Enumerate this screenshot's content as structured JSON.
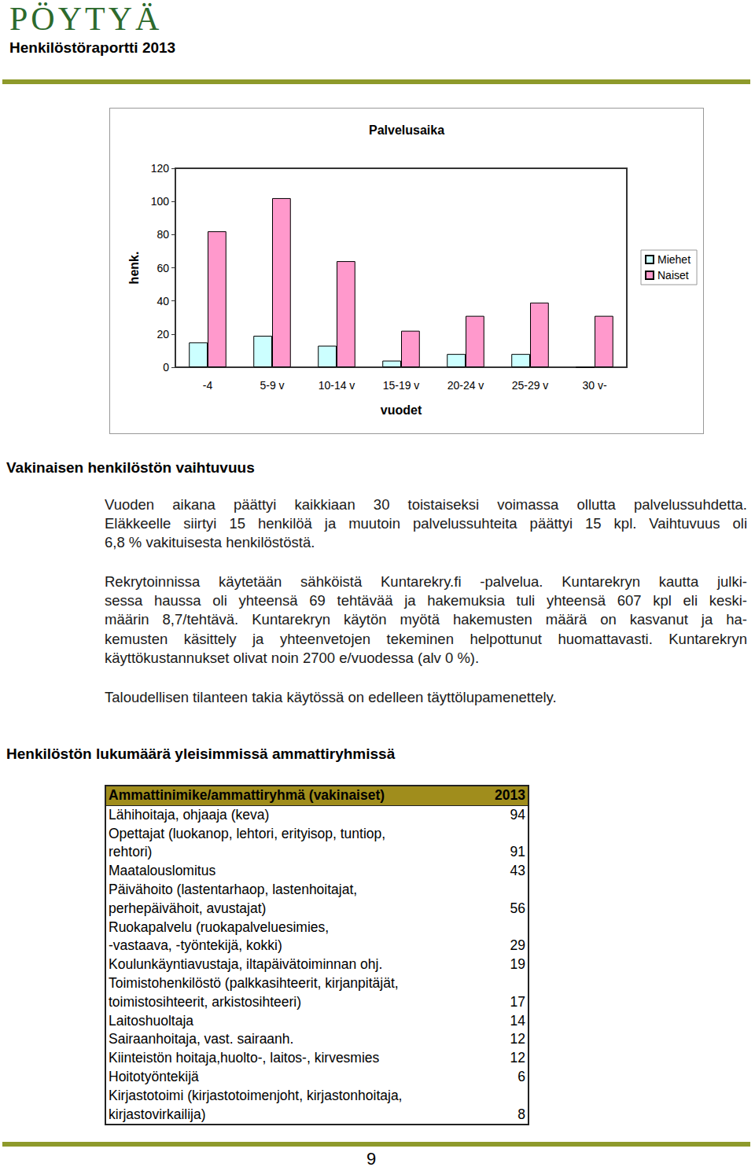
{
  "header": {
    "logo": "PÖYTYÄ",
    "subtitle": "Henkilöstöraportti 2013"
  },
  "chart_data": {
    "type": "bar",
    "title": "Palvelusaika",
    "xlabel": "vuodet",
    "ylabel": "henk.",
    "categories": [
      "-4",
      "5-9 v",
      "10-14 v",
      "15-19 v",
      "20-24 v",
      "25-29 v",
      "30 v-"
    ],
    "series": [
      {
        "name": "Miehet",
        "color": "#ccffff",
        "values": [
          15,
          19,
          13,
          4,
          8,
          8,
          0
        ]
      },
      {
        "name": "Naiset",
        "color": "#ff99cc",
        "values": [
          82,
          102,
          64,
          22,
          31,
          39,
          31
        ]
      }
    ],
    "ylim": [
      0,
      120
    ],
    "yticks": [
      0,
      20,
      40,
      60,
      80,
      100,
      120
    ],
    "grid": false,
    "legend": "right",
    "data_labels": false
  },
  "sections": [
    {
      "heading": "Vakinaisen henkilöstön vaihtuvuus",
      "paragraphs": [
        [
          "Vuoden aikana päättyi kaikkiaan 30 toistaiseksi voimassa ollutta palvelussuhdetta.",
          "Eläkkeelle siirtyi 15 henkilöä ja muutoin palvelussuhteita päättyi 15 kpl. Vaihtuvuus oli",
          "6,8 % vakituisesta henkilöstöstä."
        ],
        [
          "Rekrytoinnissa käytetään sähköistä Kuntarekry.fi -palvelua. Kuntarekryn kautta julki-",
          "sessa haussa oli yhteensä 69 tehtävää ja hakemuksia tuli yhteensä 607 kpl eli keski-",
          "määrin 8,7/tehtävä. Kuntarekryn käytön myötä hakemusten määrä on kasvanut ja ha-",
          "kemusten käsittely ja yhteenvetojen tekeminen helpottunut huomattavasti. Kuntarekryn",
          "käyttökustannukset olivat noin 2700 e/vuodessa (alv 0 %)."
        ],
        [
          "Taloudellisen tilanteen takia käytössä on edelleen täyttölupamenettely."
        ]
      ]
    },
    {
      "heading": "Henkilöstön lukumäärä yleisimmissä ammattiryhmissä",
      "paragraphs": []
    }
  ],
  "table": {
    "header": [
      "Ammattinimike/ammattiryhmä (vakinaiset)",
      "2013"
    ],
    "rows": [
      [
        [
          "Lähihoitaja, ohjaaja (keva)"
        ],
        "94"
      ],
      [
        [
          "Opettajat (luokanop, lehtori, erityisop, tuntiop,",
          "rehtori)"
        ],
        "91"
      ],
      [
        [
          "Maatalouslomitus"
        ],
        "43"
      ],
      [
        [
          "Päivähoito (lastentarhaop, lastenhoitajat,",
          "perhepäivähoit, avustajat)"
        ],
        "56"
      ],
      [
        [
          "Ruokapalvelu (ruokapalveluesimies,",
          "-vastaava, -työntekijä, kokki)"
        ],
        "29"
      ],
      [
        [
          "Koulunkäyntiavustaja, iltapäivätoiminnan ohj."
        ],
        "19"
      ],
      [
        [
          "Toimistohenkilöstö (palkkasihteerit, kirjanpitäjät,",
          "toimistosihteerit, arkistosihteeri)"
        ],
        "17"
      ],
      [
        [
          "Laitoshuoltaja"
        ],
        "14"
      ],
      [
        [
          "Sairaanhoitaja, vast. sairaanh."
        ],
        "12"
      ],
      [
        [
          "Kiinteistön hoitaja,huolto-, laitos-, kirvesmies"
        ],
        "12"
      ],
      [
        [
          "Hoitotyöntekijä"
        ],
        "6"
      ],
      [
        [
          "Kirjastotoimi (kirjastotoimenjoht, kirjastonhoitaja,",
          "kirjastovirkailija)"
        ],
        "8"
      ]
    ]
  },
  "page_number": "9"
}
